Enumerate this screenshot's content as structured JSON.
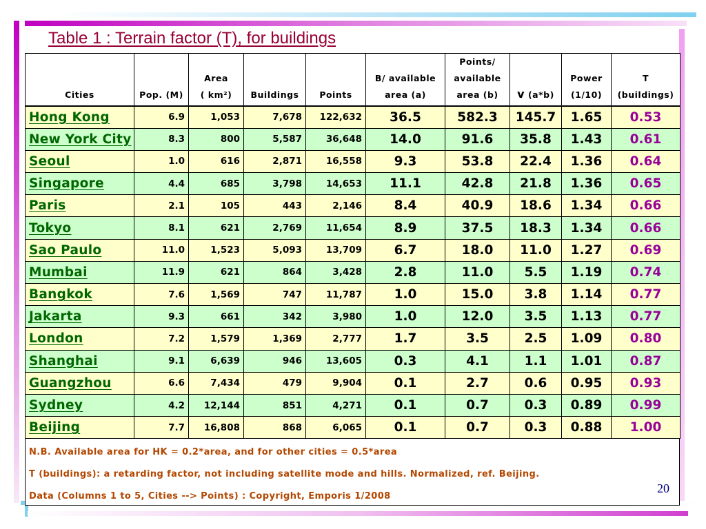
{
  "title": "Table 1 : Terrain factor (T), for buildings",
  "columns": {
    "cities": "Cities",
    "pop": "Pop. (M)",
    "area_line1": "Area",
    "area_line2": "( km²)",
    "buildings": "Buildings",
    "points": "Points",
    "bavail_line1": "B/ available",
    "bavail_line2": "area (a)",
    "pavail_line1": "Points/",
    "pavail_line2": "available",
    "pavail_line3": "area (b)",
    "v_symbol": "v",
    "v_rest": "(a*b)",
    "power_line1": "Power",
    "power_line2": "(1/10)",
    "t_line1": "T",
    "t_line2": "(buildings)"
  },
  "rows": [
    {
      "city": "Hong Kong",
      "pop": "6.9",
      "area": "1,053",
      "buildings": "7,678",
      "points": "122,632",
      "a": "36.5",
      "b": "582.3",
      "v": "145.7",
      "power": "1.65",
      "t": "0.53"
    },
    {
      "city": "New York City",
      "pop": "8.3",
      "area": "800",
      "buildings": "5,587",
      "points": "36,648",
      "a": "14.0",
      "b": "91.6",
      "v": "35.8",
      "power": "1.43",
      "t": "0.61"
    },
    {
      "city": "Seoul",
      "pop": "1.0",
      "area": "616",
      "buildings": "2,871",
      "points": "16,558",
      "a": "9.3",
      "b": "53.8",
      "v": "22.4",
      "power": "1.36",
      "t": "0.64"
    },
    {
      "city": "Singapore",
      "pop": "4.4",
      "area": "685",
      "buildings": "3,798",
      "points": "14,653",
      "a": "11.1",
      "b": "42.8",
      "v": "21.8",
      "power": "1.36",
      "t": "0.65"
    },
    {
      "city": "Paris",
      "pop": "2.1",
      "area": "105",
      "buildings": "443",
      "points": "2,146",
      "a": "8.4",
      "b": "40.9",
      "v": "18.6",
      "power": "1.34",
      "t": "0.66"
    },
    {
      "city": "Tokyo",
      "pop": "8.1",
      "area": "621",
      "buildings": "2,769",
      "points": "11,654",
      "a": "8.9",
      "b": "37.5",
      "v": "18.3",
      "power": "1.34",
      "t": "0.66"
    },
    {
      "city": "Sao Paulo",
      "pop": "11.0",
      "area": "1,523",
      "buildings": "5,093",
      "points": "13,709",
      "a": "6.7",
      "b": "18.0",
      "v": "11.0",
      "power": "1.27",
      "t": "0.69"
    },
    {
      "city": "Mumbai",
      "pop": "11.9",
      "area": "621",
      "buildings": "864",
      "points": "3,428",
      "a": "2.8",
      "b": "11.0",
      "v": "5.5",
      "power": "1.19",
      "t": "0.74"
    },
    {
      "city": "Bangkok",
      "pop": "7.6",
      "area": "1,569",
      "buildings": "747",
      "points": "11,787",
      "a": "1.0",
      "b": "15.0",
      "v": "3.8",
      "power": "1.14",
      "t": "0.77"
    },
    {
      "city": "Jakarta",
      "pop": "9.3",
      "area": "661",
      "buildings": "342",
      "points": "3,980",
      "a": "1.0",
      "b": "12.0",
      "v": "3.5",
      "power": "1.13",
      "t": "0.77"
    },
    {
      "city": "London",
      "pop": "7.2",
      "area": "1,579",
      "buildings": "1,369",
      "points": "2,777",
      "a": "1.7",
      "b": "3.5",
      "v": "2.5",
      "power": "1.09",
      "t": "0.80"
    },
    {
      "city": "Shanghai",
      "pop": "9.1",
      "area": "6,639",
      "buildings": "946",
      "points": "13,605",
      "a": "0.3",
      "b": "4.1",
      "v": "1.1",
      "power": "1.01",
      "t": "0.87"
    },
    {
      "city": "Guangzhou",
      "pop": "6.6",
      "area": "7,434",
      "buildings": "479",
      "points": "9,904",
      "a": "0.1",
      "b": "2.7",
      "v": "0.6",
      "power": "0.95",
      "t": "0.93"
    },
    {
      "city": "Sydney",
      "pop": "4.2",
      "area": "12,144",
      "buildings": "851",
      "points": "4,271",
      "a": "0.1",
      "b": "0.7",
      "v": "0.3",
      "power": "0.89",
      "t": "0.99"
    },
    {
      "city": "Beijing",
      "pop": "7.7",
      "area": "16,808",
      "buildings": "868",
      "points": "6,065",
      "a": "0.1",
      "b": "0.7",
      "v": "0.3",
      "power": "0.88",
      "t": "1.00"
    }
  ],
  "notes": {
    "nb": "N.B. Available area for HK = 0.2*area, and for other cities = 0.5*area",
    "t_def": "T (buildings): a retarding factor, not including satellite mode and hills. Normalized, ref. Beijing.",
    "source": "Data (Columns 1 to 5, Cities --> Points) : Copyright, Emporis 1/2008"
  },
  "page_number": "20",
  "colors": {
    "title": "#990033",
    "city_link": "#006600",
    "t_value": "#990099",
    "note_text": "#b34700",
    "row_yellow": "#ffffcc",
    "row_green": "#ccffcc"
  }
}
